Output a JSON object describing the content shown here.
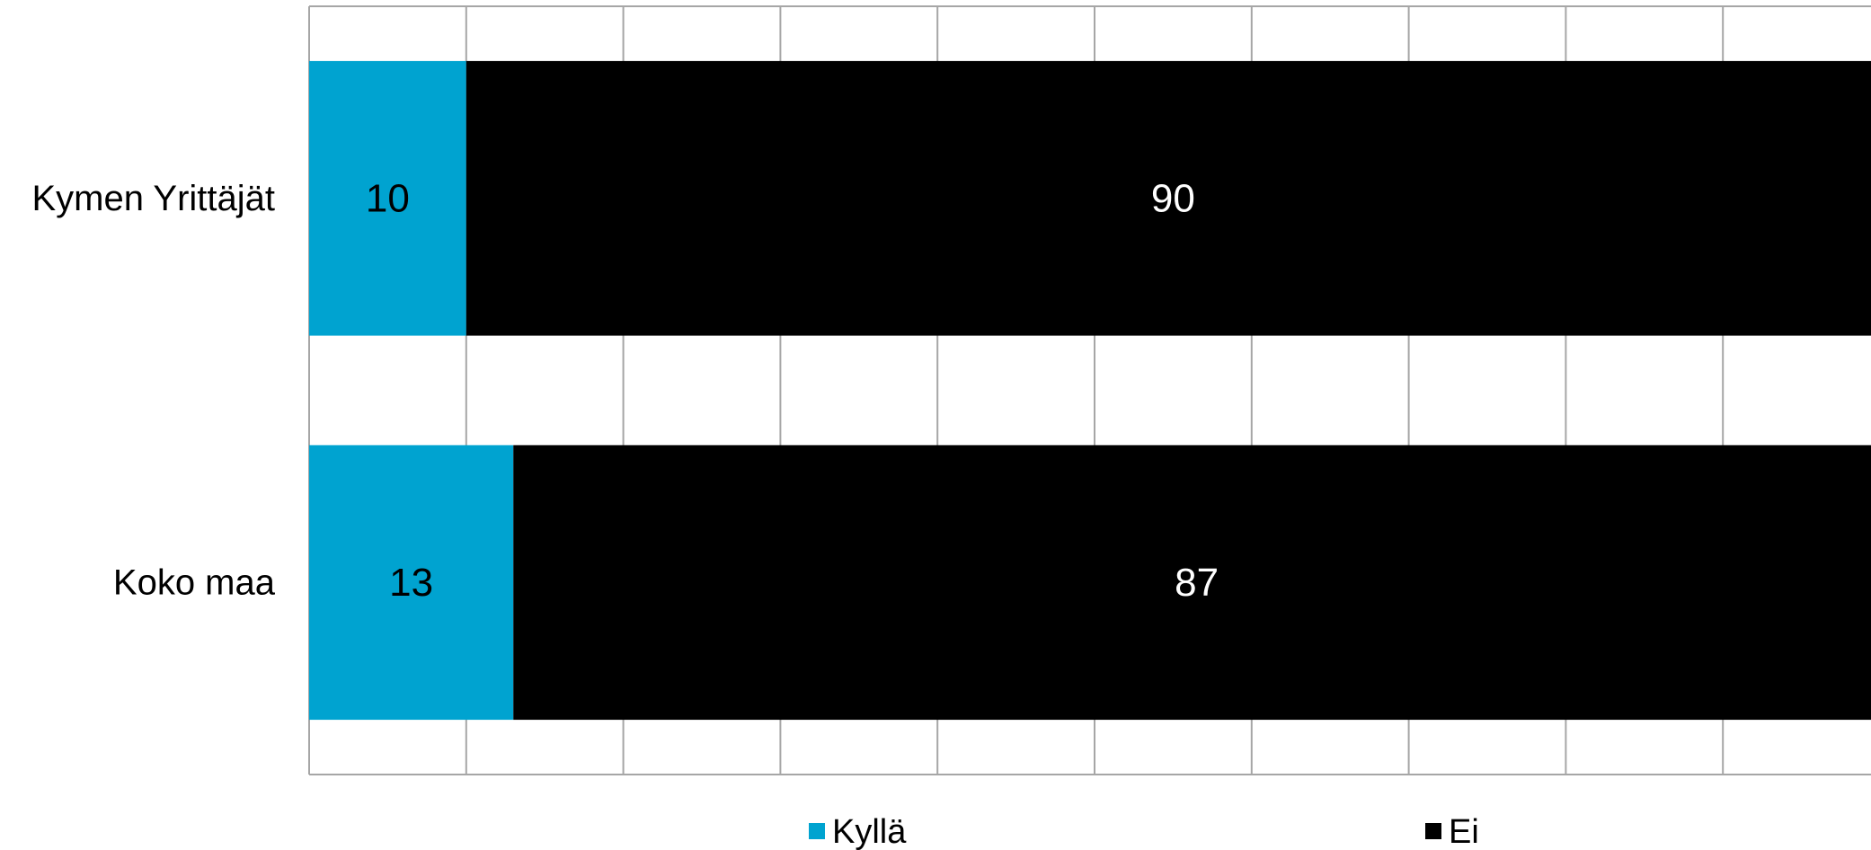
{
  "chart_data": {
    "type": "bar",
    "orientation": "horizontal",
    "stacked": true,
    "categories": [
      "Kymen Yrittäjät",
      "Koko maa"
    ],
    "series": [
      {
        "name": "Kyllä",
        "values": [
          10,
          13
        ],
        "color": "#00a3d0",
        "label_color": "#000000"
      },
      {
        "name": "Ei",
        "values": [
          90,
          87
        ],
        "color": "#000000",
        "label_color": "#ffffff"
      }
    ],
    "xlim": [
      0,
      100
    ],
    "grid": true,
    "legend_position": "bottom"
  }
}
